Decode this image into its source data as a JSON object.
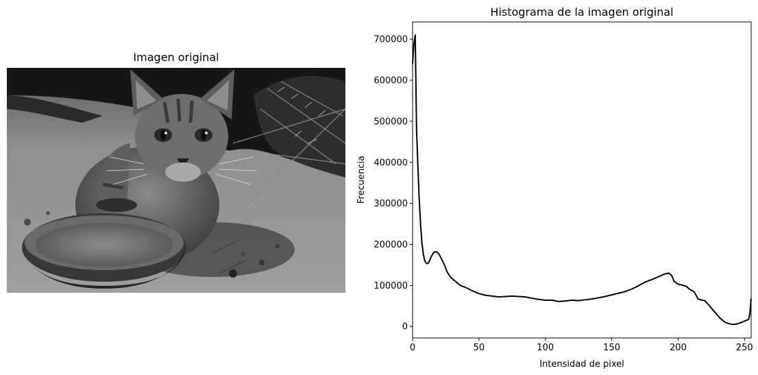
{
  "image_panel": {
    "title": "Imagen original",
    "subject": "grayscale-cat-photo"
  },
  "chart_data": {
    "type": "line",
    "title": "Histograma de la imagen original",
    "xlabel": "Intensidad de pixel",
    "ylabel": "Frecuencia",
    "xlim": [
      0,
      255
    ],
    "ylim": [
      -28000,
      742000
    ],
    "xticks": [
      0,
      50,
      100,
      150,
      200,
      250
    ],
    "yticks": [
      0,
      100000,
      200000,
      300000,
      400000,
      500000,
      600000,
      700000
    ],
    "grid": false,
    "series": [
      {
        "name": "histogram",
        "color": "#000000",
        "x": [
          0,
          1,
          2,
          3,
          4,
          5,
          6,
          7,
          8,
          9,
          10,
          11,
          12,
          14,
          16,
          18,
          20,
          22,
          24,
          26,
          28,
          30,
          33,
          36,
          40,
          45,
          50,
          55,
          60,
          65,
          70,
          75,
          80,
          85,
          90,
          95,
          100,
          105,
          110,
          115,
          120,
          125,
          130,
          135,
          140,
          145,
          150,
          155,
          160,
          165,
          170,
          175,
          180,
          185,
          190,
          193,
          195,
          197,
          200,
          203,
          206,
          209,
          212,
          215,
          218,
          220,
          223,
          226,
          229,
          232,
          235,
          238,
          241,
          244,
          247,
          250,
          253,
          254,
          255
        ],
        "values": [
          640000,
          690000,
          710000,
          480000,
          390000,
          310000,
          250000,
          205000,
          178000,
          162000,
          155000,
          153000,
          155000,
          170000,
          181000,
          182000,
          176000,
          163000,
          150000,
          133000,
          123000,
          116000,
          108000,
          100000,
          95000,
          87000,
          80000,
          76000,
          74000,
          72000,
          73000,
          74000,
          73000,
          72000,
          69000,
          66000,
          64000,
          64000,
          61000,
          62000,
          64000,
          63000,
          65000,
          67000,
          70000,
          73000,
          77000,
          81000,
          85000,
          91000,
          99000,
          108000,
          114000,
          121000,
          128000,
          130000,
          125000,
          110000,
          103000,
          101000,
          98000,
          90000,
          85000,
          67000,
          64000,
          63000,
          53000,
          41000,
          30000,
          19000,
          11000,
          7000,
          5000,
          6000,
          9000,
          13000,
          17000,
          30000,
          68000
        ]
      }
    ]
  }
}
